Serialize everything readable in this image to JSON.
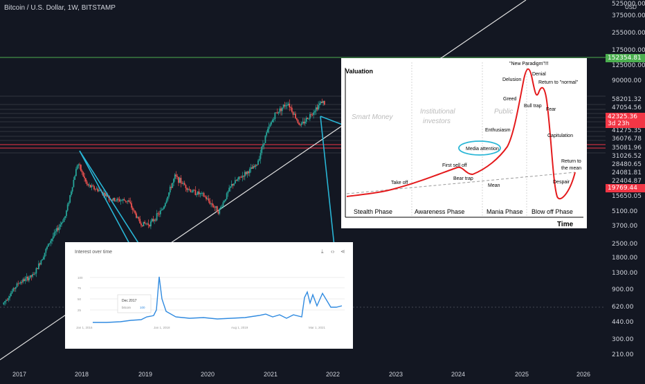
{
  "header": {
    "title": "Bitcoin / U.S. Dollar, 1W, BITSTAMP"
  },
  "price_axis": {
    "currency": "USD",
    "labels": [
      "525000.00",
      "375000.00",
      "255000.00",
      "175000.00",
      "125000.00",
      "90000.00",
      "58201.32",
      "47054.56",
      "41275.35",
      "36076.78",
      "35081.96",
      "31026.52",
      "28480.65",
      "24081.81",
      "22404.87",
      "15650.05",
      "5100.00",
      "3700.00",
      "2500.00",
      "1800.00",
      "1300.00",
      "900.00",
      "620.00",
      "440.00",
      "300.00",
      "210.00"
    ],
    "badges": {
      "green": "152354.81",
      "red_price": "42325.36",
      "red_time": "3d 23h",
      "current": "19769.44"
    }
  },
  "time_axis": {
    "labels": [
      "2017",
      "2018",
      "2019",
      "2020",
      "2021",
      "2022",
      "2023",
      "2024",
      "2025",
      "2026"
    ]
  },
  "colors": {
    "bg": "#131722",
    "up": "#26a69a",
    "down": "#ef5350",
    "arrow": "#29b6d6",
    "green_line": "#4caf50",
    "red_line": "#f23645",
    "trend_line": "#e0e0e0"
  },
  "chart_data": {
    "type": "line",
    "title": "Bitcoin / U.S. Dollar, 1W, BITSTAMP",
    "yscale": "log",
    "note_marks": "weekly candlesticks",
    "x": [
      2016.75,
      2017.0,
      2017.25,
      2017.5,
      2017.75,
      2017.95,
      2018.1,
      2018.3,
      2018.5,
      2018.75,
      2018.95,
      2019.1,
      2019.3,
      2019.5,
      2019.75,
      2019.95,
      2020.2,
      2020.4,
      2020.6,
      2020.8,
      2020.95,
      2021.1,
      2021.3,
      2021.5,
      2021.7,
      2021.85,
      2022.0
    ],
    "y": [
      620,
      1000,
      1200,
      2500,
      4500,
      15000,
      9000,
      8000,
      6500,
      6400,
      3800,
      3800,
      5200,
      11000,
      8000,
      7200,
      5000,
      9000,
      11500,
      14000,
      28000,
      45000,
      58000,
      34000,
      47000,
      60000,
      45000
    ],
    "label_texts": {
      "cycle_chart": {
        "ylabel": "Valuation",
        "xlabel": "Time",
        "sections": [
          "Smart Money",
          "Institutional investors",
          "Public"
        ],
        "phases": [
          "Stealth Phase",
          "Awareness Phase",
          "Mania Phase",
          "Blow off Phase"
        ],
        "annotations": [
          "Take off",
          "First sell off",
          "Bear trap",
          "Media attention",
          "Enthusiasm",
          "Greed",
          "Delusion",
          "\"New Paradigm\"!!!",
          "Denial",
          "Return to \"normal\"",
          "Bull trap",
          "Fear",
          "Capitulation",
          "Despair",
          "Return to the mean",
          "Mean"
        ]
      },
      "trends_panel": {
        "title": "Interest over time",
        "y_ticks": [
          "100",
          "75",
          "50",
          "25"
        ],
        "x_ticks": [
          "Jan 1, 2016",
          "Jan 1, 2018",
          "Aug 1, 2019",
          "Mar 1, 2021"
        ],
        "tooltip_date": "Dec 2017",
        "tooltip_label": "bitcoin",
        "tooltip_value": "100"
      }
    }
  }
}
